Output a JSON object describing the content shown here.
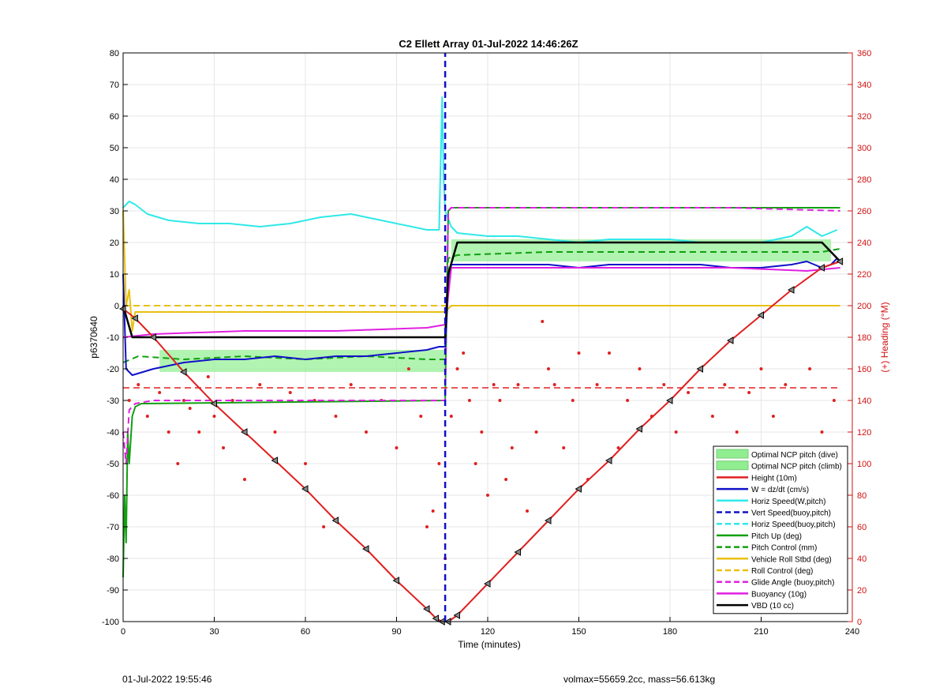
{
  "footer": {
    "timestamp": "01-Jul-2022 19:55:46",
    "summary": "volmax=55659.2cc, mass=56.613kg"
  },
  "chart_data": {
    "type": "line",
    "title": "C2 Ellett Array 01-Jul-2022 14:46:26Z",
    "xlabel": "Time (minutes)",
    "ylabel": "p6370640",
    "ylabel_right": "(+) Heading (°M)",
    "xlim": [
      0,
      240
    ],
    "ylim": [
      -100,
      80
    ],
    "ylim_right": [
      0,
      360
    ],
    "xticks": [
      0,
      30,
      60,
      90,
      120,
      150,
      180,
      210,
      240
    ],
    "yticks": [
      -100,
      -90,
      -80,
      -70,
      -60,
      -50,
      -40,
      -30,
      -20,
      -10,
      0,
      10,
      20,
      30,
      40,
      50,
      60,
      70,
      80
    ],
    "yticks_right": [
      0,
      20,
      40,
      60,
      80,
      100,
      120,
      140,
      160,
      180,
      200,
      220,
      240,
      260,
      280,
      300,
      320,
      340,
      360
    ],
    "grid": true,
    "legend_placement": "bottom-right",
    "colors": {
      "optimal_band": "#90ee90",
      "height": "#e02020",
      "w": "#1010c8",
      "horiz_speed": "#30e8e8",
      "vert_speed_dash": "#1010c8",
      "pitch": "#10a010",
      "roll": "#e8c010",
      "glide": "#e020e0",
      "buoyancy": "#e020e0",
      "vbd": "#000000",
      "heading": "#e02020"
    },
    "legend": [
      {
        "label": "Optimal NCP pitch (dive)",
        "style": "patch",
        "color": "#90ee90"
      },
      {
        "label": "Optimal NCP pitch (climb)",
        "style": "patch",
        "color": "#90ee90"
      },
      {
        "label": "Height (10m)",
        "style": "solid",
        "color": "#e02020"
      },
      {
        "label": "W = dz/dt (cm/s)",
        "style": "solid",
        "color": "#1010c8"
      },
      {
        "label": "Horiz Speed(W,pitch)",
        "style": "solid",
        "color": "#30e8e8"
      },
      {
        "label": "Vert Speed(buoy,pitch)",
        "style": "dashed",
        "color": "#1010c8"
      },
      {
        "label": "Horiz Speed(buoy,pitch)",
        "style": "dashed",
        "color": "#30e8e8"
      },
      {
        "label": "Pitch Up (deg)",
        "style": "solid",
        "color": "#10a010"
      },
      {
        "label": "Pitch Control (mm)",
        "style": "dashed",
        "color": "#10a010"
      },
      {
        "label": "Vehicle Roll Stbd (deg)",
        "style": "solid",
        "color": "#e8c010"
      },
      {
        "label": "Roll Control (deg)",
        "style": "dashed",
        "color": "#e8c010"
      },
      {
        "label": "Glide Angle (buoy,pitch)",
        "style": "dashed",
        "color": "#e020e0"
      },
      {
        "label": "Buoyancy (10g)",
        "style": "solid",
        "color": "#e020e0"
      },
      {
        "label": "VBD (10 cc)",
        "style": "solid",
        "color": "#000000"
      }
    ],
    "bands": [
      {
        "name": "Optimal NCP pitch (dive)",
        "x": [
          12,
          106
        ],
        "y": [
          -21,
          -14
        ]
      },
      {
        "name": "Optimal NCP pitch (climb)",
        "x": [
          108,
          233
        ],
        "y": [
          14,
          21
        ]
      }
    ],
    "series": [
      {
        "name": "Height (10m)",
        "style": "solid",
        "axis": "left",
        "x": [
          0,
          4,
          10,
          20,
          30,
          40,
          50,
          60,
          70,
          80,
          90,
          100,
          103,
          105,
          107,
          110,
          120,
          130,
          140,
          150,
          160,
          170,
          180,
          190,
          200,
          210,
          220,
          230,
          236
        ],
        "y": [
          -1,
          -4,
          -10,
          -21,
          -31,
          -40,
          -49,
          -58,
          -68,
          -77,
          -87,
          -96,
          -99,
          -100,
          -100,
          -98,
          -88,
          -78,
          -68,
          -58,
          -49,
          -39,
          -30,
          -20,
          -11,
          -3,
          5,
          12,
          14
        ],
        "markers": true
      },
      {
        "name": "W = dz/dt (cm/s)",
        "style": "solid",
        "axis": "left",
        "x": [
          0,
          1,
          3,
          10,
          20,
          30,
          40,
          50,
          60,
          70,
          80,
          90,
          100,
          104,
          106,
          107,
          108,
          110,
          120,
          130,
          140,
          150,
          160,
          170,
          180,
          190,
          200,
          210,
          220,
          225,
          230,
          233,
          235
        ],
        "y": [
          10,
          -20,
          -22,
          -20,
          -18,
          -17,
          -17,
          -16,
          -17,
          -16,
          -16,
          -15,
          -14,
          -13,
          -13,
          5,
          13,
          13,
          13,
          13,
          13,
          12,
          13,
          13,
          13,
          13,
          12,
          12,
          13,
          14,
          12,
          13,
          15
        ]
      },
      {
        "name": "Horiz Speed(W,pitch)",
        "style": "solid",
        "axis": "left",
        "x": [
          0,
          2,
          4,
          8,
          15,
          25,
          35,
          45,
          55,
          65,
          75,
          85,
          95,
          100,
          104,
          105,
          105.5,
          106,
          108,
          110,
          120,
          130,
          140,
          150,
          160,
          170,
          180,
          190,
          200,
          210,
          220,
          225,
          230,
          235
        ],
        "y": [
          31,
          33,
          32,
          29,
          27,
          26,
          26,
          25,
          26,
          28,
          29,
          27,
          25,
          24,
          24,
          66,
          40,
          30,
          25,
          23,
          22,
          22,
          21,
          20,
          21,
          21,
          21,
          20,
          20,
          20,
          22,
          25,
          22,
          24
        ]
      },
      {
        "name": "Pitch Up (deg)",
        "style": "solid",
        "axis": "left",
        "x": [
          0,
          0.5,
          1,
          1.5,
          2,
          3,
          4,
          6,
          106,
          107,
          108,
          236
        ],
        "y": [
          -86,
          -60,
          -75,
          -40,
          -50,
          -35,
          -32,
          -31,
          -30,
          30,
          31,
          31
        ]
      },
      {
        "name": "Pitch Control (mm)",
        "style": "dashed",
        "axis": "left",
        "x": [
          0,
          5,
          20,
          40,
          60,
          80,
          100,
          106,
          107,
          110,
          140,
          170,
          200,
          230,
          236
        ],
        "y": [
          -18,
          -16,
          -17,
          -16,
          -17,
          -16,
          -17,
          -17,
          15,
          16,
          17,
          17,
          17,
          17,
          18
        ]
      },
      {
        "name": "Vehicle Roll Stbd (deg)",
        "style": "solid",
        "axis": "left",
        "x": [
          0,
          1,
          2,
          3,
          4,
          106,
          108,
          236
        ],
        "y": [
          30,
          0,
          5,
          -8,
          -2,
          -2,
          0,
          0
        ]
      },
      {
        "name": "Roll Control (deg)",
        "style": "dashed",
        "axis": "left",
        "x": [
          0,
          4,
          106,
          108,
          236
        ],
        "y": [
          0,
          0,
          0,
          0,
          0
        ]
      },
      {
        "name": "Glide Angle (buoy,pitch)",
        "style": "dashed",
        "axis": "left",
        "x": [
          0,
          1,
          2,
          4,
          10,
          30,
          60,
          90,
          106,
          107,
          108,
          150,
          200,
          236
        ],
        "y": [
          -40,
          -50,
          -33,
          -31,
          -30,
          -30,
          -30,
          -30,
          -30,
          30,
          31,
          31,
          31,
          30
        ]
      },
      {
        "name": "Buoyancy (10g)",
        "style": "solid",
        "axis": "left",
        "x": [
          0,
          10,
          40,
          70,
          100,
          106,
          108,
          150,
          200,
          225,
          236
        ],
        "y": [
          -10,
          -9,
          -8,
          -8,
          -7,
          -6,
          12,
          12,
          12,
          11,
          12
        ]
      },
      {
        "name": "VBD (10 cc)",
        "style": "solid",
        "axis": "left",
        "x": [
          0,
          3,
          106,
          107,
          110,
          230,
          236
        ],
        "y": [
          0,
          -10,
          -10,
          10,
          20,
          20,
          14
        ]
      },
      {
        "name": "Vert Speed(buoy,pitch)",
        "style": "dashed",
        "axis": "left",
        "x": [
          106,
          106
        ],
        "y": [
          -100,
          80
        ]
      },
      {
        "name": "Heading",
        "style": "dashed-ref",
        "axis": "right",
        "x": [
          0,
          236
        ],
        "y": [
          148,
          148
        ]
      }
    ],
    "heading_points": {
      "x": [
        2,
        5,
        8,
        12,
        15,
        18,
        20,
        22,
        25,
        28,
        30,
        33,
        36,
        40,
        45,
        50,
        55,
        60,
        63,
        66,
        70,
        75,
        80,
        85,
        90,
        94,
        98,
        100,
        102,
        104,
        106,
        108,
        110,
        112,
        114,
        116,
        118,
        120,
        122,
        124,
        126,
        128,
        130,
        133,
        136,
        138,
        140,
        142,
        145,
        148,
        150,
        153,
        156,
        160,
        163,
        166,
        170,
        174,
        178,
        182,
        186,
        190,
        194,
        198,
        202,
        206,
        210,
        214,
        218,
        222,
        226,
        230,
        234
      ],
      "y": [
        140,
        150,
        130,
        145,
        120,
        100,
        140,
        135,
        120,
        155,
        130,
        110,
        140,
        90,
        150,
        120,
        145,
        100,
        140,
        60,
        130,
        150,
        120,
        140,
        110,
        160,
        130,
        60,
        70,
        100,
        40,
        130,
        160,
        170,
        140,
        100,
        120,
        80,
        150,
        140,
        90,
        110,
        150,
        70,
        120,
        190,
        160,
        150,
        110,
        140,
        170,
        90,
        150,
        170,
        110,
        140,
        160,
        130,
        150,
        120,
        145,
        160,
        130,
        150,
        120,
        145,
        160,
        130,
        150,
        110,
        160,
        120,
        140
      ]
    }
  }
}
